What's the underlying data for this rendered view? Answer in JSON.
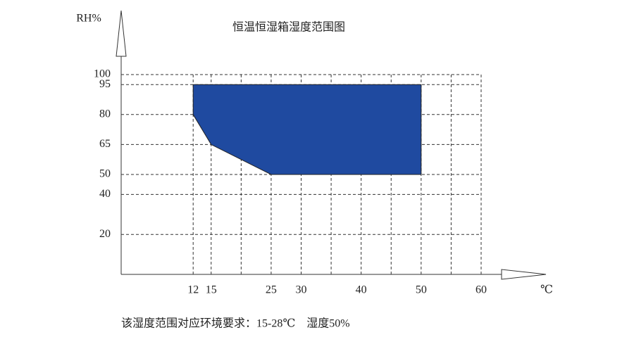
{
  "chart_data": {
    "type": "area",
    "title": "恒温恒湿箱湿度范围图",
    "y_label": "RH%",
    "x_label": "℃",
    "note": "该湿度范围对应环境要求：15-28℃　湿度50%",
    "x": [
      12,
      50,
      50,
      25,
      15,
      12
    ],
    "values": [
      95,
      95,
      50,
      50,
      65,
      80
    ],
    "color": "#1f4aa0",
    "xlim": [
      0,
      60
    ],
    "ylim": [
      0,
      100
    ],
    "xticks": [
      12,
      15,
      25,
      30,
      40,
      50,
      60
    ],
    "xgrid": [
      12,
      15,
      20,
      25,
      30,
      35,
      40,
      45,
      50,
      55,
      60
    ],
    "yticks": [
      20,
      40,
      50,
      65,
      80,
      95,
      100
    ],
    "grid": true
  }
}
